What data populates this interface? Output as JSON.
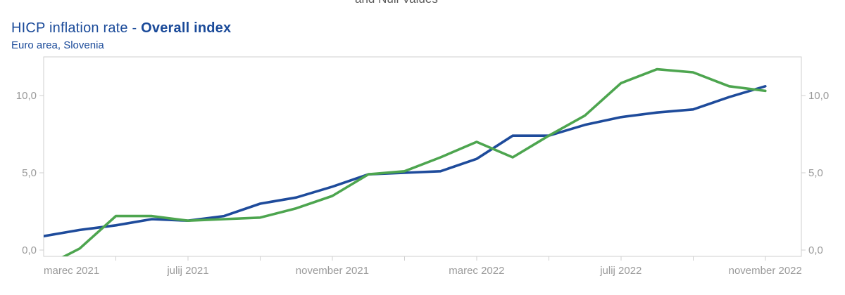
{
  "page": {
    "clipped_caption_fragment": "and Null Values",
    "title_regular": "HICP inflation rate - ",
    "title_bold": "Overall index",
    "subtitle": "Euro area, Slovenia"
  },
  "chart_data": {
    "type": "line",
    "title": "HICP inflation rate - Overall index",
    "subtitle": "Euro area, Slovenia",
    "grid": false,
    "legend": "none",
    "x_axis": {
      "n_categories": 22,
      "note": "monthly categories; last category has null values (no line drawn)",
      "tick_every": 2,
      "labels": [
        {
          "index": 0,
          "label": "marec 2021"
        },
        {
          "index": 4,
          "label": "julij 2021"
        },
        {
          "index": 8,
          "label": "november 2021"
        },
        {
          "index": 12,
          "label": "marec 2022"
        },
        {
          "index": 16,
          "label": "julij 2022"
        },
        {
          "index": 20,
          "label": "november 2022"
        }
      ]
    },
    "y_axis": {
      "ticks": [
        0,
        5,
        10
      ],
      "tick_labels": [
        "0,0",
        "5,0",
        "10,0"
      ],
      "plot_range": [
        -0.41,
        12.5
      ],
      "shown_on_both_sides": true
    },
    "series": [
      {
        "name": "Euro area",
        "color": "#1e4b9b",
        "values": [
          0.9,
          1.3,
          1.6,
          2.0,
          1.9,
          2.2,
          3.0,
          3.4,
          4.1,
          4.9,
          5.0,
          5.1,
          5.9,
          7.4,
          7.4,
          8.1,
          8.6,
          8.9,
          9.1,
          9.9,
          10.6
        ]
      },
      {
        "name": "Slovenia",
        "color": "#4da54f",
        "values": [
          -1.1,
          0.1,
          2.2,
          2.2,
          1.9,
          2.0,
          2.1,
          2.7,
          3.5,
          4.9,
          5.1,
          6.0,
          7.0,
          6.0,
          7.4,
          8.7,
          10.8,
          11.7,
          11.5,
          10.6,
          10.3
        ]
      }
    ],
    "colors": {
      "title_blue": "#1a4a99",
      "axis_line": "#cfcfcf",
      "axis_label": "#9a9a9a",
      "caption_gray": "#5a5a5a"
    }
  }
}
